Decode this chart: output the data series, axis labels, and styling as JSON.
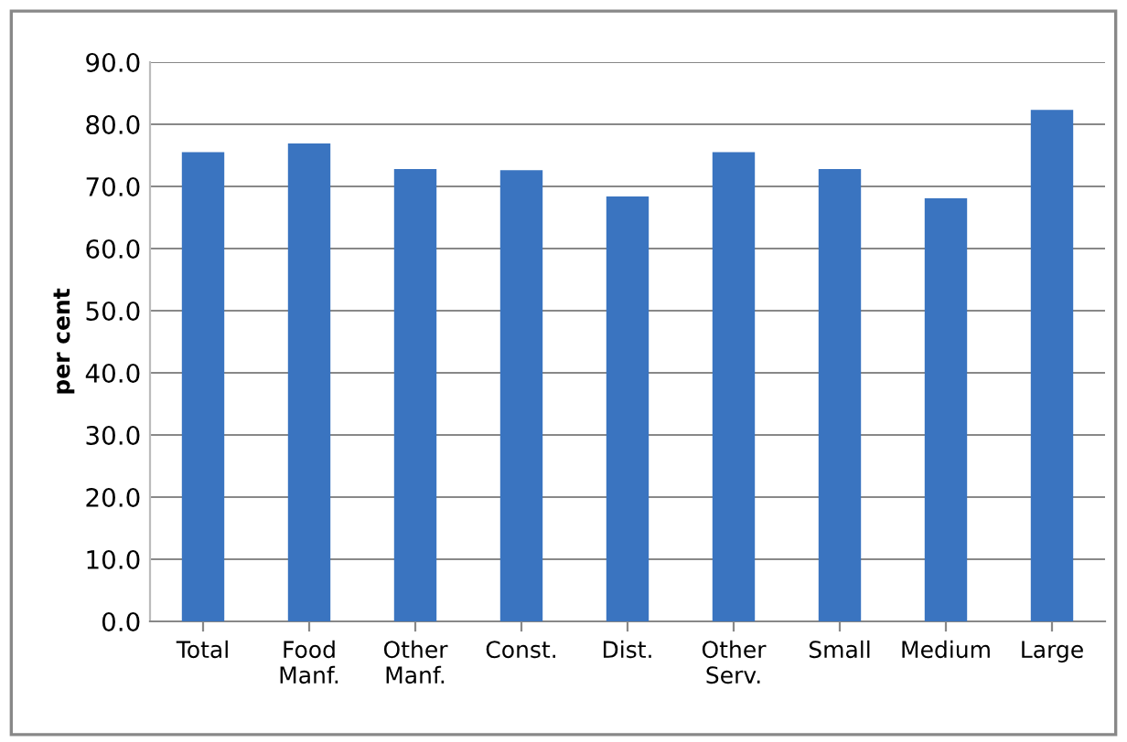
{
  "chart_data": {
    "type": "bar",
    "ylabel": "per cent",
    "categories": [
      "Total",
      "Food\nManf.",
      "Other\nManf.",
      "Const.",
      "Dist.",
      "Other\nServ.",
      "Small",
      "Medium",
      "Large"
    ],
    "values": [
      75.5,
      76.9,
      72.8,
      72.6,
      68.4,
      75.5,
      72.8,
      68.1,
      82.3
    ],
    "color": "#3a74c0",
    "ylim": [
      0,
      90
    ],
    "yticks": [
      {
        "value": 0,
        "label": "0.0"
      },
      {
        "value": 10,
        "label": "10.0"
      },
      {
        "value": 20,
        "label": "20.0"
      },
      {
        "value": 30,
        "label": "30.0"
      },
      {
        "value": 40,
        "label": "40.0"
      },
      {
        "value": 50,
        "label": "50.0"
      },
      {
        "value": 60,
        "label": "60.0"
      },
      {
        "value": 70,
        "label": "70.0"
      },
      {
        "value": 80,
        "label": "80.0"
      },
      {
        "value": 90,
        "label": "90.0"
      }
    ],
    "grid": "y",
    "legend": false
  }
}
